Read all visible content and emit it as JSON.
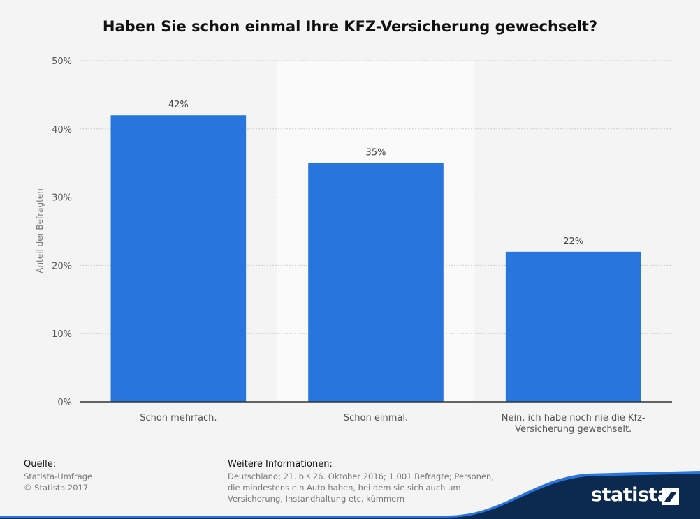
{
  "chart_data": {
    "type": "bar",
    "title": "Haben Sie schon einmal Ihre KFZ-Versicherung gewechselt?",
    "ylabel": "Anteil der Befragten",
    "xlabel": "",
    "categories": [
      "Schon mehrfach.",
      "Schon einmal.",
      "Nein, ich habe noch nie die Kfz-Versicherung gewechselt."
    ],
    "category_lines": [
      [
        "Schon mehrfach."
      ],
      [
        "Schon einmal."
      ],
      [
        "Nein, ich habe noch nie die Kfz-",
        "Versicherung gewechselt."
      ]
    ],
    "values": [
      42,
      35,
      22
    ],
    "value_labels": [
      "42%",
      "35%",
      "22%"
    ],
    "ylim": [
      0,
      50
    ],
    "yticks": [
      0,
      10,
      20,
      30,
      40,
      50
    ],
    "ytick_labels": [
      "0%",
      "10%",
      "20%",
      "30%",
      "40%",
      "50%"
    ],
    "grid": true,
    "highlighted_category": 1,
    "colors": {
      "bar": "#2876dd",
      "highlight_band": "#fafafa",
      "grid": "#cccccc",
      "axis": "#333333"
    }
  },
  "footer": {
    "source_heading": "Quelle:",
    "source_lines": [
      "Statista-Umfrage",
      "© Statista 2017"
    ],
    "info_heading": "Weitere Informationen:",
    "info_lines": [
      "Deutschland; 21. bis 26. Oktober 2016; 1.001 Befragte; Personen,",
      "die mindestens ein Auto haben, bei dem sie sich auch um",
      "Versicherung, Instandhaltung etc. kümmern"
    ]
  },
  "branding": {
    "logo_text": "statista",
    "logo_icon": "statista-logo-icon",
    "color": "#0c2a4f"
  }
}
